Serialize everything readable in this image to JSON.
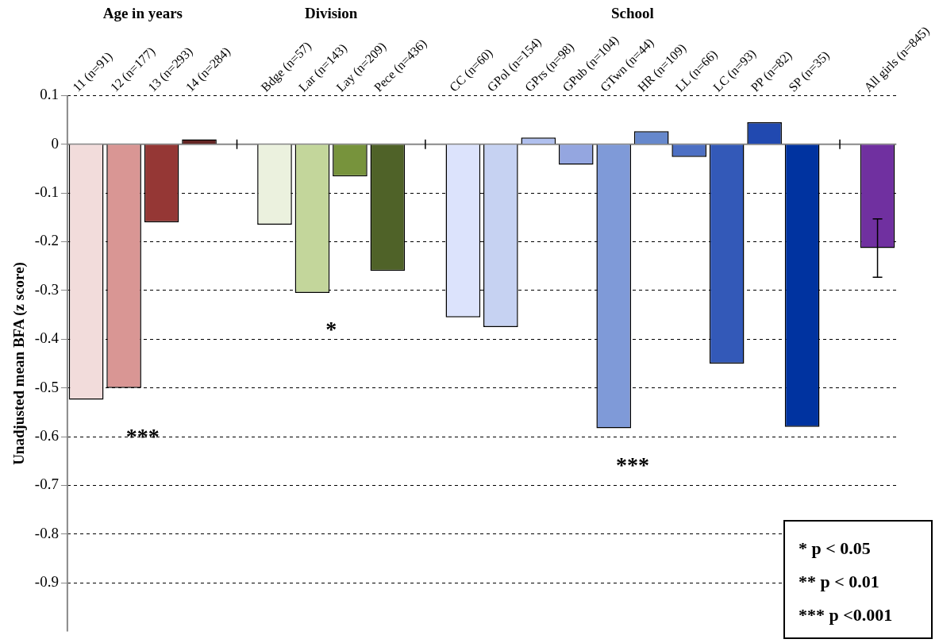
{
  "chart_data": {
    "type": "bar",
    "ylabel": "Unadjusted mean BFA (z score)",
    "categories": [
      "11 (n=91)",
      "12 (n=177)",
      "13 (n=293)",
      "14 (n=284)",
      null,
      "Bdge (n=57)",
      "Lar (n=143)",
      "Lay (n=209)",
      "Pece (n=436)",
      null,
      "CC (n=60)",
      "GPol (n=154)",
      "GPrs (n=98)",
      "GPub (n=104)",
      "GTwn (n=44)",
      "HR (n=109)",
      "LL (n=66)",
      "LC (n=93)",
      "PP (n=82)",
      "SP (n=35)",
      null,
      "All girls (n=845)"
    ],
    "values": [
      -0.524,
      -0.5,
      -0.16,
      0.01,
      null,
      -0.165,
      -0.305,
      -0.066,
      -0.26,
      null,
      -0.355,
      -0.375,
      0.014,
      -0.042,
      -0.583,
      0.027,
      -0.026,
      -0.45,
      0.045,
      -0.58,
      null,
      -0.213
    ],
    "colors": [
      "#f2dcdb",
      "#d99694",
      "#953735",
      "#632523",
      null,
      "#ebf1de",
      "#c3d69b",
      "#77933c",
      "#4f6228",
      null,
      "#dce3fc",
      "#c6d2f2",
      "#b0c0ee",
      "#94a6e0",
      "#7f9ad8",
      "#6688cc",
      "#4d70c4",
      "#3359b8",
      "#2149b0",
      "#0033a0",
      null,
      "#7030a0"
    ],
    "errors": [
      null,
      null,
      null,
      null,
      null,
      null,
      null,
      null,
      null,
      null,
      null,
      null,
      null,
      null,
      null,
      null,
      null,
      null,
      null,
      null,
      null,
      0.06
    ],
    "ylim": [
      -1,
      0.1
    ],
    "yticks": [
      0.1,
      0,
      -0.1,
      -0.2,
      -0.3,
      -0.4,
      -0.5,
      -0.6,
      -0.7,
      -0.8,
      -0.9
    ],
    "grid": "y",
    "legend": false,
    "annotations": [
      "Age in years",
      "Division",
      "School",
      "***",
      "*",
      "***",
      "* p < 0.05",
      "** p < 0.01",
      "*** p <0.001"
    ]
  }
}
